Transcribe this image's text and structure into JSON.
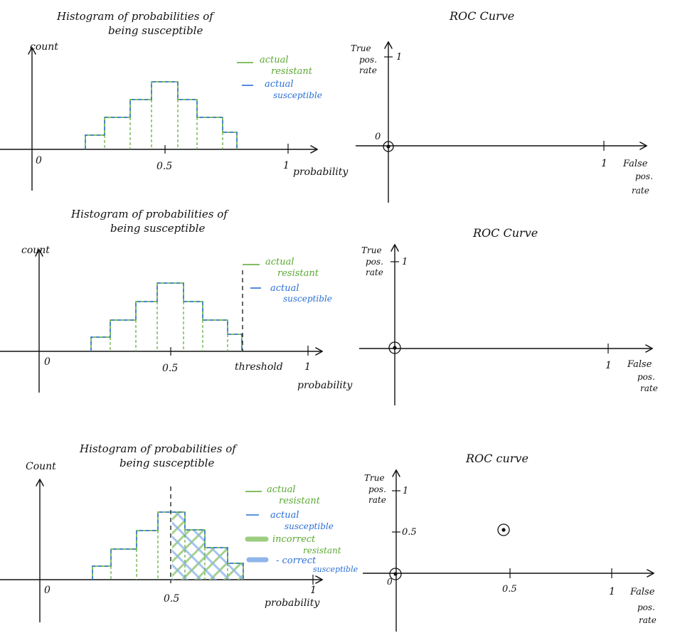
{
  "colors": {
    "ink": "#111111",
    "resistant": "#5aa832",
    "susceptible": "#2a6fd6",
    "incorrect_fill": "#9ccc80",
    "correct_fill": "#8fb6ea"
  },
  "panels": [
    {
      "hist_title_line1": "Histogram of probabilities of",
      "hist_title_line2": "being susceptible",
      "y_label": "count",
      "x_zero": "0",
      "x_half": "0.5",
      "x_one": "1",
      "x_label": "probability",
      "legend": {
        "resistant": [
          "actual",
          "resistant"
        ],
        "susceptible": [
          "actual",
          "susceptible"
        ]
      },
      "roc_title": "ROC Curve",
      "roc_y_label": [
        "True",
        "pos.",
        "rate"
      ],
      "roc_y_one": "1",
      "roc_origin": "0",
      "roc_x_one": "1",
      "roc_x_label": [
        "False",
        "pos.",
        "rate"
      ]
    },
    {
      "hist_title_line1": "Histogram of probabilities of",
      "hist_title_line2": "being susceptible",
      "y_label": "count",
      "x_zero": "0",
      "x_half": "0.5",
      "x_one": "1",
      "x_label": "probability",
      "threshold_label": "threshold",
      "legend": {
        "resistant": [
          "actual",
          "resistant"
        ],
        "susceptible": [
          "actual",
          "susceptible"
        ]
      },
      "roc_title": "ROC Curve",
      "roc_y_label": [
        "True",
        "pos.",
        "rate"
      ],
      "roc_y_one": "1",
      "roc_x_one": "1",
      "roc_x_label": [
        "False",
        "pos.",
        "rate"
      ]
    },
    {
      "hist_title_line1": "Histogram of probabilities of",
      "hist_title_line2": "being susceptible",
      "y_label": "Count",
      "x_zero": "0",
      "x_half": "0.5",
      "x_one": "1",
      "x_label": "probability",
      "legend": {
        "resistant": [
          "actual",
          "resistant"
        ],
        "susceptible": [
          "actual",
          "susceptible"
        ],
        "incorrect": [
          "incorrect",
          "resistant"
        ],
        "correct": [
          "- correct",
          "susceptible"
        ]
      },
      "roc_title": "ROC curve",
      "roc_y_label": [
        "True",
        "pos.",
        "rate"
      ],
      "roc_y_one": "1",
      "roc_y_half": "0.5",
      "roc_origin": "0",
      "roc_x_half": "0.5",
      "roc_x_one": "1",
      "roc_x_label": [
        "False",
        "pos.",
        "rate"
      ]
    }
  ]
}
